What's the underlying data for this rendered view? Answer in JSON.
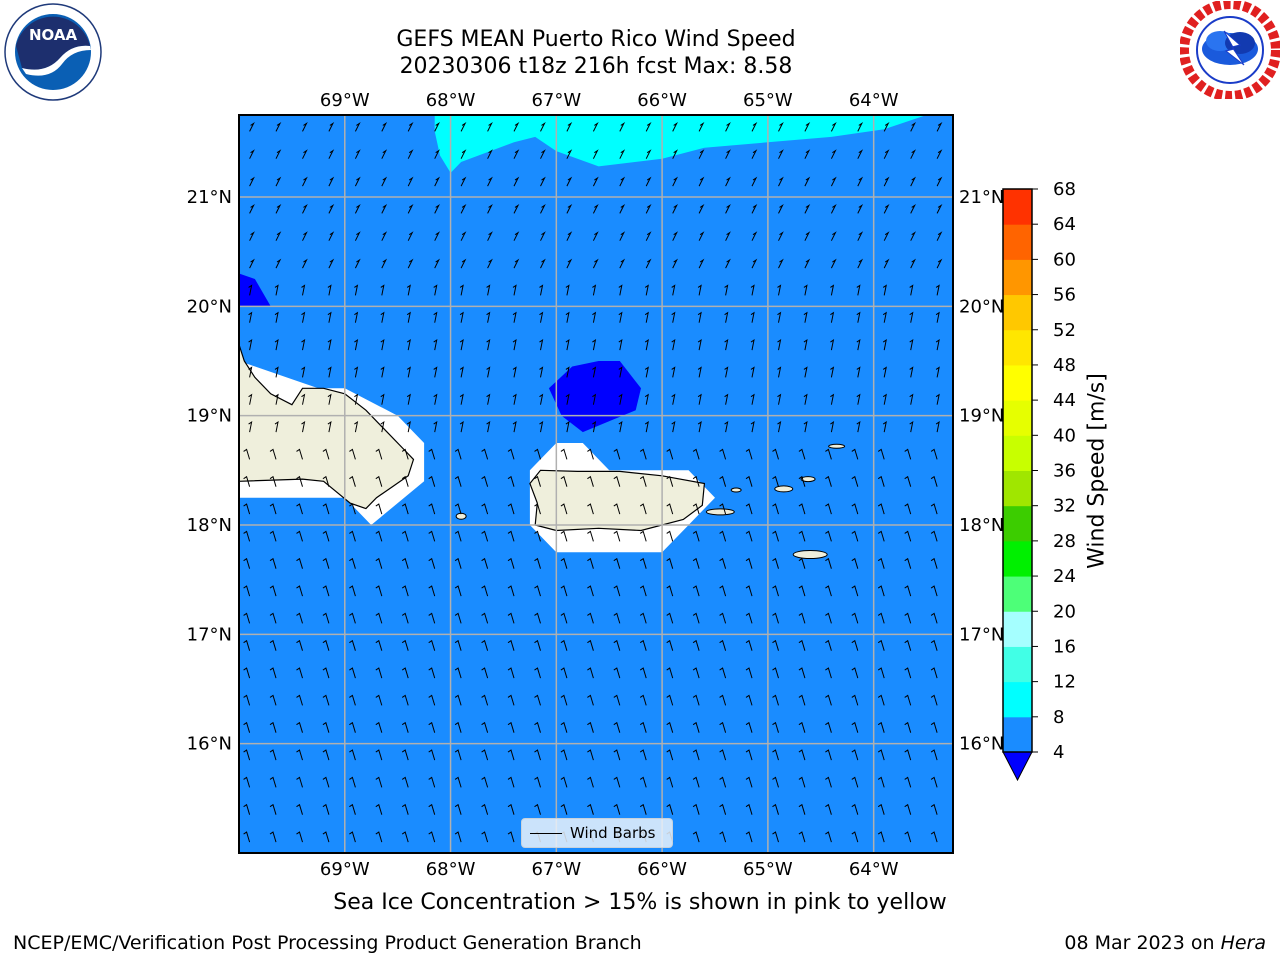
{
  "title": {
    "line1": "GEFS MEAN Puerto Rico Wind Speed",
    "line2": "20230306 t18z 216h fcst   Max: 8.58"
  },
  "logos": {
    "left": {
      "icon": "noaa-logo",
      "text": "NOAA"
    },
    "right": {
      "icon": "national-weather-service-logo"
    }
  },
  "map": {
    "lon_labels": [
      "69°W",
      "68°W",
      "67°W",
      "66°W",
      "65°W",
      "64°W"
    ],
    "lat_labels": [
      "21°N",
      "20°N",
      "19°N",
      "18°N",
      "17°N",
      "16°N"
    ],
    "lon_range": [
      -70.0,
      -63.25
    ],
    "lat_range": [
      15.0,
      21.75
    ],
    "colors": {
      "ocean_fill": "#1a8cff",
      "light_band": "#00ffff",
      "calm_patch": "#0000ff",
      "land": "#efefdc",
      "no_data": "#ffffff",
      "grid": "#b0b0b0"
    }
  },
  "legend": {
    "label": "Wind Barbs"
  },
  "colorbar": {
    "title": "Wind Speed [m/s]",
    "ticks": [
      "4",
      "8",
      "12",
      "16",
      "20",
      "24",
      "28",
      "32",
      "36",
      "40",
      "44",
      "48",
      "52",
      "56",
      "60",
      "64",
      "68"
    ],
    "segment_colors": [
      "#1a8cff",
      "#00ffff",
      "#41ffe6",
      "#a5ffff",
      "#4dff78",
      "#00f000",
      "#3ccd00",
      "#a0e600",
      "#c8ff00",
      "#e6ff00",
      "#ffff00",
      "#ffe600",
      "#ffc800",
      "#ff9600",
      "#ff6400",
      "#ff3200"
    ],
    "extend_color": "#0000ff"
  },
  "note": "Sea Ice Concentration > 15% is shown in pink to yellow",
  "footer": {
    "left": "NCEP/EMC/Verification Post Processing Product Generation Branch",
    "right_date": "08 Mar 2023 on ",
    "right_machine": "Hera"
  }
}
